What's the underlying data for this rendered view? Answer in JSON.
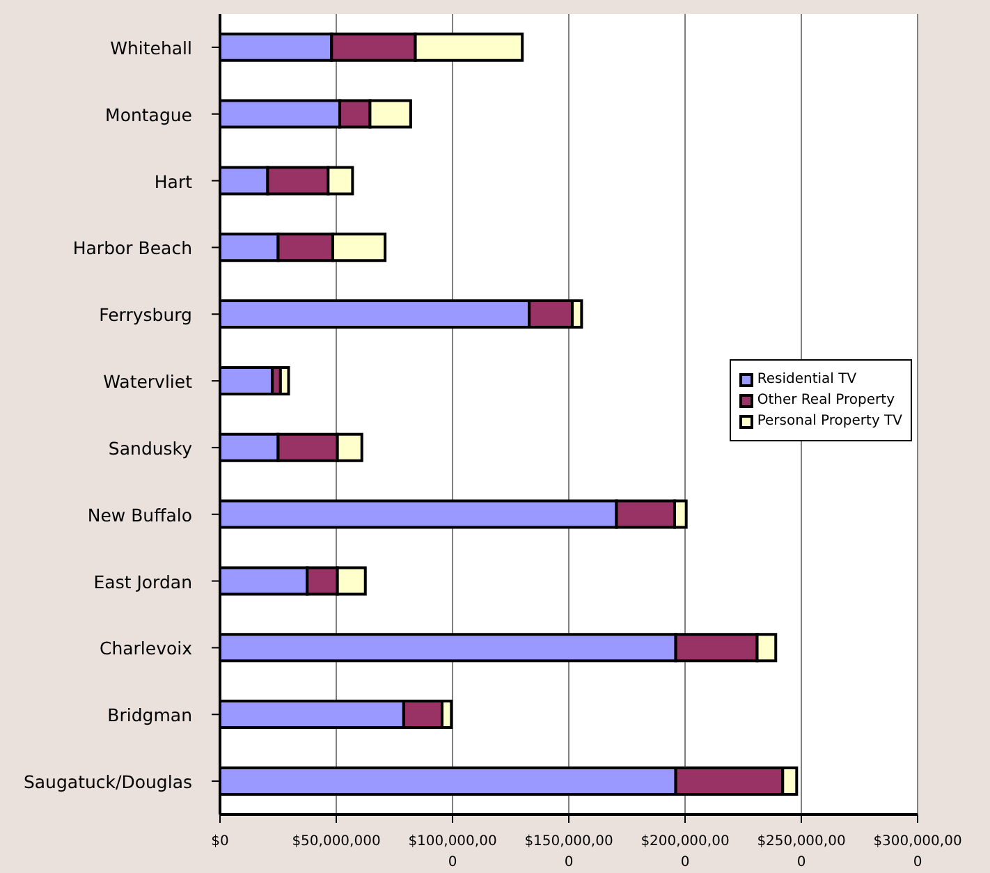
{
  "chart_data": {
    "type": "bar",
    "orientation": "horizontal",
    "stacked": true,
    "categories": [
      "Whitehall",
      "Montague",
      "Hart",
      "Harbor Beach",
      "Ferrysburg",
      "Watervliet",
      "Sandusky",
      "New Buffalo",
      "East Jordan",
      "Charlevoix",
      "Bridgman",
      "Saugatuck/Douglas"
    ],
    "series": [
      {
        "name": "Residential TV",
        "color": "#9999ff",
        "values": [
          48000000,
          51500000,
          20500000,
          25000000,
          133000000,
          22500000,
          25000000,
          170500000,
          37500000,
          196000000,
          79000000,
          196000000
        ]
      },
      {
        "name": "Other Real Property",
        "color": "#993366",
        "values": [
          36000000,
          13000000,
          26000000,
          23500000,
          18500000,
          3500000,
          25500000,
          25000000,
          13000000,
          35000000,
          16500000,
          46000000
        ]
      },
      {
        "name": "Personal Property TV",
        "color": "#ffffcc",
        "values": [
          46000000,
          17500000,
          10500000,
          22500000,
          4000000,
          3500000,
          10500000,
          5000000,
          12000000,
          8000000,
          4000000,
          6000000
        ]
      }
    ],
    "xlim": [
      0,
      300000000
    ],
    "xticks": [
      {
        "value": 0,
        "label": "$0"
      },
      {
        "value": 50000000,
        "label": "$50,000,000"
      },
      {
        "value": 100000000,
        "label": "$100,000,000"
      },
      {
        "value": 150000000,
        "label": "$150,000,000"
      },
      {
        "value": 200000000,
        "label": "$200,000,000"
      },
      {
        "value": 250000000,
        "label": "$250,000,000"
      },
      {
        "value": 300000000,
        "label": "$300,000,000"
      }
    ],
    "grid": "x",
    "legend": "right"
  }
}
